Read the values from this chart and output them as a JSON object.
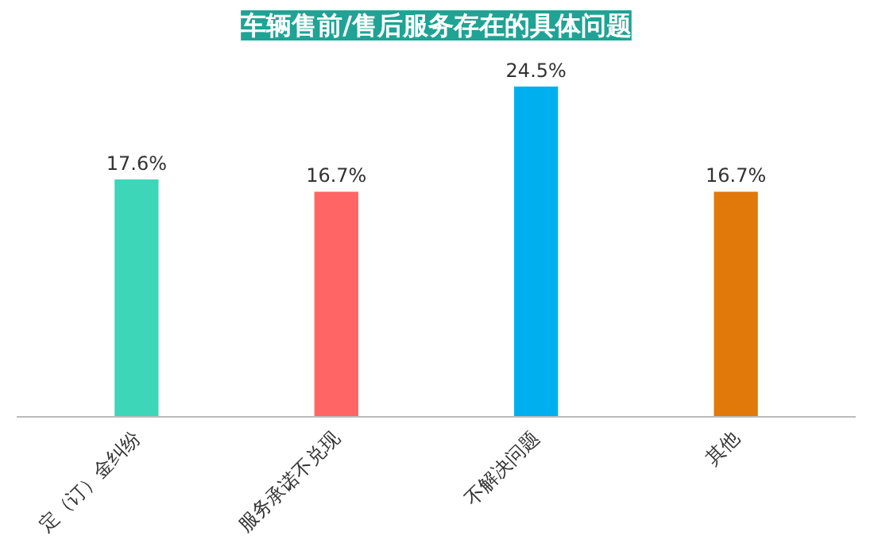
{
  "chart_data": {
    "type": "bar",
    "title": "车辆售前/售后服务存在的具体问题",
    "categories": [
      "定（订）金纠纷",
      "服务承诺不兑现",
      "不解决问题",
      "其他"
    ],
    "values": [
      17.6,
      16.7,
      24.5,
      16.7
    ],
    "colors": [
      "#3dd6b8",
      "#ff6565",
      "#00b0ee",
      "#e0780a"
    ],
    "value_labels": [
      "17.6%",
      "16.7%",
      "24.5%",
      "16.7%"
    ],
    "grid": false
  }
}
